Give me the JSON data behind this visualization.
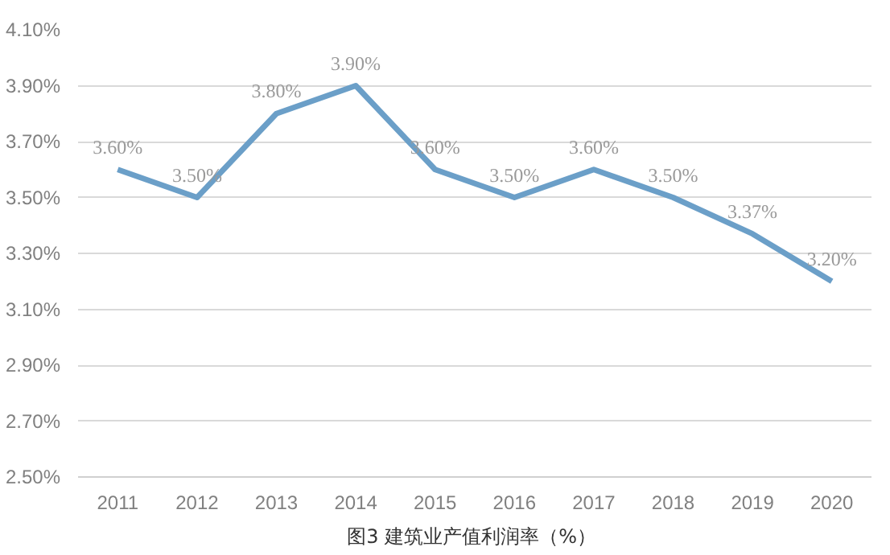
{
  "chart_data": {
    "type": "line",
    "title": "图3  建筑业产值利润率（%）",
    "categories": [
      "2011",
      "2012",
      "2013",
      "2014",
      "2015",
      "2016",
      "2017",
      "2018",
      "2019",
      "2020"
    ],
    "series": [
      {
        "color": "#6b9fc8",
        "values": [
          3.6,
          3.5,
          3.8,
          3.9,
          3.6,
          3.5,
          3.6,
          3.5,
          3.37,
          3.2
        ],
        "value_labels": [
          "3.60%",
          "3.50%",
          "3.80%",
          "3.90%",
          "3.60%",
          "3.50%",
          "3.60%",
          "3.50%",
          "3.37%",
          "3.20%"
        ]
      }
    ],
    "ylim": [
      2.5,
      4.1
    ],
    "yticks": [
      {
        "value": 2.5,
        "label": "2.50%"
      },
      {
        "value": 2.7,
        "label": "2.70%"
      },
      {
        "value": 2.9,
        "label": "2.90%"
      },
      {
        "value": 3.1,
        "label": "3.10%"
      },
      {
        "value": 3.3,
        "label": "3.30%"
      },
      {
        "value": 3.5,
        "label": "3.50%"
      },
      {
        "value": 3.7,
        "label": "3.70%"
      },
      {
        "value": 3.9,
        "label": "3.90%"
      },
      {
        "value": 4.1,
        "label": "4.10%"
      }
    ],
    "grid": "y",
    "marker": "none",
    "line_style": "solid"
  }
}
